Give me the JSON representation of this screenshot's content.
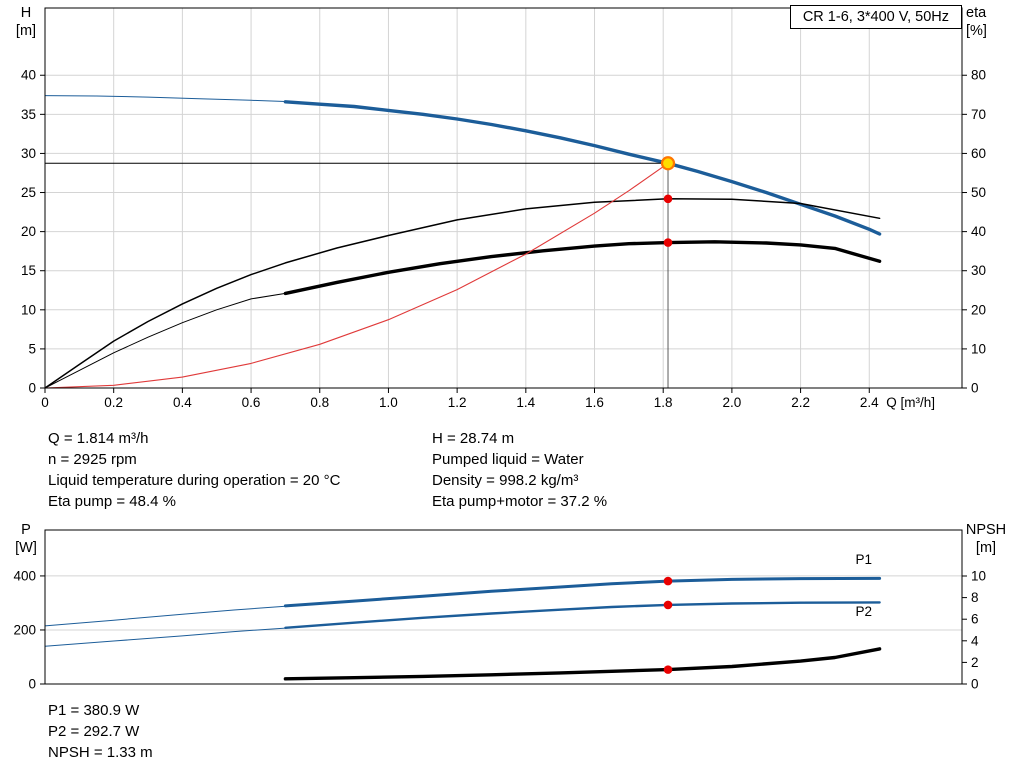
{
  "header_box": "CR 1-6, 3*400 V, 50Hz",
  "axis_corner_labels": {
    "top_left": [
      "H",
      "[m]"
    ],
    "top_right": [
      "eta",
      "[%]"
    ],
    "bottom_left": [
      "P",
      "[W]"
    ],
    "bottom_right": [
      "NPSH",
      "[m]"
    ]
  },
  "info": {
    "left": [
      "Q = 1.814 m³/h",
      "n = 2925 rpm",
      "Liquid temperature during operation = 20 °C",
      "Eta pump = 48.4 %"
    ],
    "right": [
      "H = 28.74 m",
      "Pumped liquid = Water",
      "Density = 998.2 kg/m³",
      "Eta pump+motor = 37.2 %"
    ]
  },
  "bottom_info": [
    "P1 = 380.9 W",
    "P2 = 292.7 W",
    "NPSH = 1.33 m"
  ],
  "colors": {
    "curve_blue": "#1c5d99",
    "curve_black": "#000000",
    "system_red": "#e03a3a",
    "grid": "#d4d4d4",
    "label_blue": "#2a6db5"
  },
  "marker_styles": {
    "dot": {
      "radius": 4.3,
      "fill": "#e80000",
      "stroke": "none",
      "stroke_width": 0
    },
    "duty": {
      "radius": 6,
      "fill": "#ffdd00",
      "stroke": "#ff7700",
      "stroke_width": 2.2
    }
  },
  "chart_data": [
    {
      "type": "line",
      "name": "head-flow-chart",
      "title": "CR 1-6, 3*400 V, 50Hz",
      "duty_point": {
        "Q": 1.814,
        "H": 28.74,
        "eta_pump": 48.4,
        "eta_pump_motor": 37.2
      },
      "x_axis": {
        "label": "Q [m³/h]",
        "min": 0,
        "max": 2.67,
        "tick_values": [
          0,
          0.2,
          0.4,
          0.6,
          0.8,
          1.0,
          1.2,
          1.4,
          1.6,
          1.8,
          2.0,
          2.2,
          2.4
        ],
        "tick_labels": [
          "0",
          "0.2",
          "0.4",
          "0.6",
          "0.8",
          "1.0",
          "1.2",
          "1.4",
          "1.6",
          "1.8",
          "2.0",
          "2.2",
          "2.4"
        ]
      },
      "y_left": {
        "label": "H [m]",
        "min": 0,
        "max": 48.6,
        "tick_values": [
          0,
          5,
          10,
          15,
          20,
          25,
          30,
          35,
          40
        ],
        "tick_labels": [
          "0",
          "5",
          "10",
          "15",
          "20",
          "25",
          "30",
          "35",
          "40"
        ]
      },
      "y_right": {
        "label": "eta [%]",
        "min": 0,
        "max": 97.2,
        "tick_values": [
          0,
          10,
          20,
          30,
          40,
          50,
          60,
          70,
          80
        ],
        "tick_labels": [
          "0",
          "10",
          "20",
          "30",
          "40",
          "50",
          "60",
          "70",
          "80"
        ]
      },
      "series": [
        {
          "name": "HQ lead in",
          "axis": "left",
          "color": "#1c5d99",
          "width": 1,
          "points": [
            [
              0,
              37.4
            ],
            [
              0.15,
              37.35
            ],
            [
              0.3,
              37.2
            ],
            [
              0.45,
              37.0
            ],
            [
              0.6,
              36.8
            ],
            [
              0.72,
              36.6
            ]
          ]
        },
        {
          "name": "HQ curve",
          "axis": "left",
          "color": "#1c5d99",
          "width": 3.4,
          "points": [
            [
              0.7,
              36.6
            ],
            [
              0.8,
              36.3
            ],
            [
              0.9,
              36.0
            ],
            [
              1.0,
              35.5
            ],
            [
              1.1,
              35.0
            ],
            [
              1.2,
              34.4
            ],
            [
              1.3,
              33.7
            ],
            [
              1.4,
              32.9
            ],
            [
              1.5,
              32.0
            ],
            [
              1.6,
              31.0
            ],
            [
              1.7,
              29.9
            ],
            [
              1.814,
              28.74
            ],
            [
              1.9,
              27.7
            ],
            [
              2.0,
              26.4
            ],
            [
              2.1,
              25.0
            ],
            [
              2.2,
              23.5
            ],
            [
              2.3,
              22.0
            ],
            [
              2.4,
              20.3
            ],
            [
              2.43,
              19.7
            ]
          ]
        },
        {
          "name": "eta pump curve",
          "axis": "right",
          "color": "#000000",
          "width": 1.5,
          "points": [
            [
              0,
              0
            ],
            [
              0.1,
              6
            ],
            [
              0.2,
              12
            ],
            [
              0.3,
              17
            ],
            [
              0.4,
              21.5
            ],
            [
              0.5,
              25.5
            ],
            [
              0.6,
              29
            ],
            [
              0.7,
              32
            ],
            [
              0.85,
              35.8
            ],
            [
              1.0,
              39
            ],
            [
              1.2,
              43
            ],
            [
              1.4,
              45.8
            ],
            [
              1.6,
              47.5
            ],
            [
              1.814,
              48.4
            ],
            [
              2.0,
              48.3
            ],
            [
              2.2,
              47.2
            ],
            [
              2.43,
              43.4
            ]
          ]
        },
        {
          "name": "eta pump motor lead in",
          "axis": "right",
          "color": "#000000",
          "width": 1,
          "points": [
            [
              0,
              0
            ],
            [
              0.1,
              4.5
            ],
            [
              0.2,
              9
            ],
            [
              0.3,
              13
            ],
            [
              0.4,
              16.7
            ],
            [
              0.5,
              20
            ],
            [
              0.6,
              22.8
            ],
            [
              0.7,
              24.2
            ]
          ]
        },
        {
          "name": "eta pump motor curve",
          "axis": "right",
          "color": "#000000",
          "width": 3.4,
          "points": [
            [
              0.7,
              24.2
            ],
            [
              0.85,
              27.0
            ],
            [
              1.0,
              29.6
            ],
            [
              1.15,
              31.8
            ],
            [
              1.3,
              33.6
            ],
            [
              1.45,
              35.1
            ],
            [
              1.6,
              36.3
            ],
            [
              1.7,
              36.9
            ],
            [
              1.814,
              37.2
            ],
            [
              1.95,
              37.4
            ],
            [
              2.1,
              37.1
            ],
            [
              2.2,
              36.6
            ],
            [
              2.3,
              35.7
            ],
            [
              2.43,
              32.4
            ]
          ]
        },
        {
          "name": "system curve",
          "axis": "left",
          "color": "#e03a3a",
          "width": 1.1,
          "points": [
            [
              0,
              0
            ],
            [
              0.2,
              0.35
            ],
            [
              0.4,
              1.4
            ],
            [
              0.6,
              3.14
            ],
            [
              0.8,
              5.59
            ],
            [
              1.0,
              8.73
            ],
            [
              1.2,
              12.58
            ],
            [
              1.4,
              17.12
            ],
            [
              1.6,
              22.36
            ],
            [
              1.7,
              25.24
            ],
            [
              1.814,
              28.74
            ]
          ]
        }
      ],
      "annotation_lines": [
        {
          "name": "duty-head-line",
          "axis": "left",
          "x1": 0,
          "y1": 28.74,
          "x2": 1.814,
          "y2": 28.74,
          "color": "#000000",
          "width": 1
        },
        {
          "name": "duty-flow-line",
          "axis": "left",
          "x1": 1.814,
          "y1": 0,
          "x2": 1.814,
          "y2": 28.74,
          "color": "#333333",
          "width": 0.8
        }
      ],
      "markers": [
        {
          "name": "duty-point",
          "axis": "left",
          "x": 1.814,
          "y": 28.74,
          "style": "duty"
        },
        {
          "name": "eta-pump-point",
          "axis": "right",
          "x": 1.814,
          "y": 48.4,
          "style": "dot"
        },
        {
          "name": "eta-motor-point",
          "axis": "right",
          "x": 1.814,
          "y": 37.2,
          "style": "dot"
        }
      ],
      "series_labels": []
    },
    {
      "type": "line",
      "name": "power-npsh-chart",
      "duty_point": {
        "Q": 1.814,
        "P1": 380.9,
        "P2": 292.7,
        "NPSH": 1.33
      },
      "x_axis": {
        "label": "",
        "min": 0,
        "max": 2.67,
        "tick_values": [],
        "tick_labels": []
      },
      "y_left": {
        "label": "P [W]",
        "min": 0,
        "max": 570,
        "tick_values": [
          0,
          200,
          400
        ],
        "tick_labels": [
          "0",
          "200",
          "400"
        ]
      },
      "y_right": {
        "label": "NPSH [m]",
        "min": 0,
        "max": 14.26,
        "tick_values": [
          0,
          2,
          4,
          6,
          8,
          10
        ],
        "tick_labels": [
          "0",
          "2",
          "4",
          "6",
          "8",
          "10"
        ]
      },
      "series": [
        {
          "name": "P1 lead in",
          "axis": "left",
          "color": "#1c5d99",
          "width": 1,
          "points": [
            [
              0,
              215
            ],
            [
              0.2,
              236
            ],
            [
              0.4,
              258
            ],
            [
              0.55,
              274
            ],
            [
              0.7,
              288
            ]
          ]
        },
        {
          "name": "P1 curve",
          "axis": "left",
          "color": "#1c5d99",
          "width": 3,
          "points": [
            [
              0.7,
              289
            ],
            [
              0.9,
              307
            ],
            [
              1.1,
              325
            ],
            [
              1.3,
              343
            ],
            [
              1.5,
              359
            ],
            [
              1.65,
              371
            ],
            [
              1.814,
              380.9
            ],
            [
              2.0,
              387
            ],
            [
              2.2,
              390
            ],
            [
              2.43,
              391
            ]
          ]
        },
        {
          "name": "P2 lead in",
          "axis": "left",
          "color": "#1c5d99",
          "width": 1,
          "points": [
            [
              0,
              140
            ],
            [
              0.2,
              159
            ],
            [
              0.4,
              178
            ],
            [
              0.55,
              194
            ],
            [
              0.7,
              207
            ]
          ]
        },
        {
          "name": "P2 curve",
          "axis": "left",
          "color": "#1c5d99",
          "width": 2.4,
          "points": [
            [
              0.7,
              208
            ],
            [
              0.9,
              227
            ],
            [
              1.1,
              245
            ],
            [
              1.3,
              261
            ],
            [
              1.5,
              275
            ],
            [
              1.65,
              285
            ],
            [
              1.814,
              292.7
            ],
            [
              2.0,
              298
            ],
            [
              2.2,
              301
            ],
            [
              2.43,
              302
            ]
          ]
        },
        {
          "name": "NPSH curve",
          "axis": "right",
          "color": "#000000",
          "width": 3.4,
          "points": [
            [
              0.7,
              0.48
            ],
            [
              0.9,
              0.58
            ],
            [
              1.1,
              0.7
            ],
            [
              1.3,
              0.85
            ],
            [
              1.5,
              1.03
            ],
            [
              1.65,
              1.18
            ],
            [
              1.814,
              1.33
            ],
            [
              2.0,
              1.62
            ],
            [
              2.2,
              2.12
            ],
            [
              2.3,
              2.45
            ],
            [
              2.43,
              3.25
            ]
          ]
        }
      ],
      "annotation_lines": [],
      "markers": [
        {
          "name": "p1-point",
          "axis": "left",
          "x": 1.814,
          "y": 380.9,
          "style": "dot"
        },
        {
          "name": "p2-point",
          "axis": "left",
          "x": 1.814,
          "y": 292.7,
          "style": "dot"
        },
        {
          "name": "npsh-point",
          "axis": "right",
          "x": 1.814,
          "y": 1.33,
          "style": "dot"
        }
      ],
      "series_labels": [
        {
          "text": "P1",
          "axis": "left",
          "x": 2.36,
          "y": 445,
          "color": "#2a6db5"
        },
        {
          "text": "P2",
          "axis": "left",
          "x": 2.36,
          "y": 252,
          "color": "#2a6db5"
        }
      ]
    }
  ]
}
